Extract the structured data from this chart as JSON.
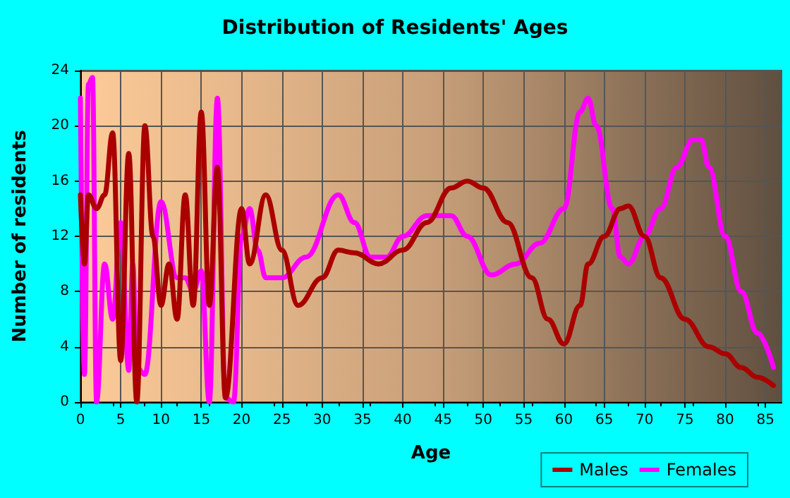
{
  "chart_data": {
    "type": "line",
    "title": "Distribution of Residents' Ages",
    "xlabel": "Age",
    "ylabel": "Number of residents",
    "xlim": [
      0,
      87
    ],
    "xticks": [
      0,
      5,
      10,
      15,
      20,
      25,
      30,
      35,
      40,
      45,
      50,
      55,
      60,
      65,
      70,
      75,
      80,
      85
    ],
    "ylim": [
      0,
      24
    ],
    "yticks": [
      0,
      4,
      8,
      12,
      16,
      20,
      24
    ],
    "grid": true,
    "legend": "bottom right",
    "marker": "none",
    "line_style": "solid",
    "series": [
      {
        "name": "Males",
        "color": "#aa0000",
        "x": [
          0,
          0.5,
          1,
          2,
          3,
          4,
          5,
          6,
          7,
          8,
          9,
          10,
          11,
          12,
          13,
          14,
          15,
          16,
          17,
          18,
          20,
          21,
          23,
          25,
          27,
          30,
          32,
          34,
          37,
          40,
          43,
          46,
          48,
          50,
          53,
          56,
          58,
          60,
          62,
          63,
          65,
          67,
          68,
          70,
          72,
          75,
          78,
          80,
          82,
          84,
          86
        ],
        "values": [
          15,
          10,
          15,
          14,
          15,
          19.5,
          3,
          18,
          0,
          20,
          12,
          7,
          10,
          6,
          15,
          7,
          21,
          7,
          17,
          0.3,
          14,
          10,
          15,
          11,
          7,
          9,
          11,
          10.8,
          10,
          11,
          13,
          15.5,
          16,
          15.5,
          13,
          9,
          6,
          4.2,
          7,
          10,
          12,
          14,
          14.2,
          12,
          9,
          6,
          4,
          3.5,
          2.5,
          1.8,
          1.2
        ]
      },
      {
        "name": "Females",
        "color": "#ff00ff",
        "x": [
          0,
          0.5,
          1,
          1.5,
          2,
          3,
          4,
          5,
          6,
          6.5,
          7,
          8,
          10,
          12,
          13,
          14,
          15,
          16,
          17,
          18,
          19,
          20,
          21,
          22,
          23,
          25,
          28,
          32,
          34,
          36,
          38,
          40,
          43,
          46,
          48,
          51,
          54,
          57,
          60,
          62,
          63,
          64,
          66,
          67,
          68,
          70,
          72,
          74,
          76,
          77,
          78,
          80,
          82,
          84,
          86
        ],
        "values": [
          22,
          2,
          23,
          23.5,
          0,
          10,
          6,
          13,
          2.3,
          10,
          2.5,
          2,
          14.5,
          9,
          9,
          8,
          9.5,
          0,
          22,
          0.3,
          0,
          12,
          14,
          11,
          9,
          9,
          10.5,
          15,
          13,
          10.5,
          10.5,
          12,
          13.5,
          13.5,
          12,
          9.2,
          10,
          11.5,
          14,
          21,
          22,
          20,
          14,
          10.5,
          10,
          12,
          14,
          17,
          19,
          19,
          17,
          12,
          8,
          5,
          2.5
        ]
      }
    ]
  }
}
